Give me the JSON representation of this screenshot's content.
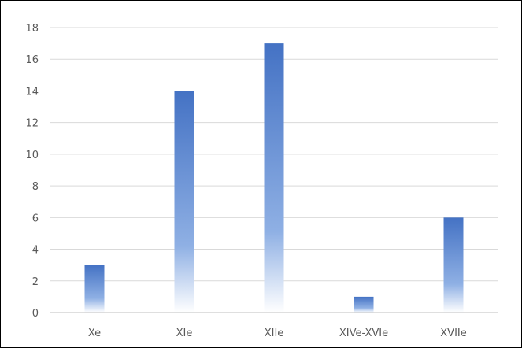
{
  "chart_data": {
    "type": "bar",
    "categories": [
      "Xe",
      "XIe",
      "XIIe",
      "XIVe-XVIe",
      "XVIIe"
    ],
    "values": [
      3,
      14,
      17,
      1,
      6
    ],
    "title": "",
    "xlabel": "",
    "ylabel": "",
    "ylim": [
      0,
      18
    ],
    "yticks": [
      "0",
      "2",
      "4",
      "6",
      "8",
      "10",
      "12",
      "14",
      "16",
      "18"
    ],
    "grid": true,
    "legend": "none",
    "colors": {
      "bar_top": "#4472C4",
      "bar_bottom": "#ffffff",
      "grid": "#d9d9d9",
      "axis": "#bfbfbf",
      "label": "#595959"
    }
  }
}
